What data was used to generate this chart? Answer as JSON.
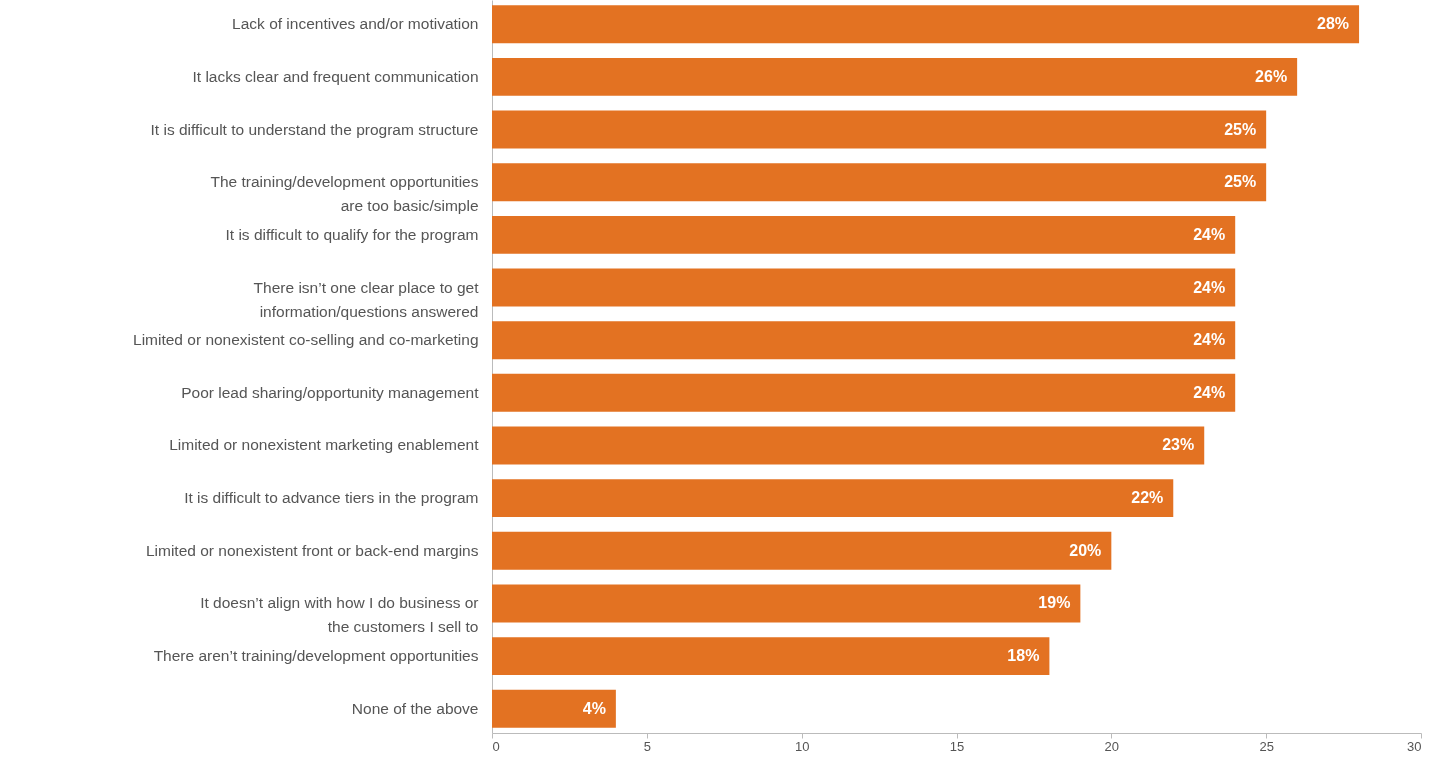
{
  "chart_data": {
    "type": "bar",
    "orientation": "horizontal",
    "color": "#e37222",
    "categories": [
      "Lack of incentives and/or motivation",
      "It lacks clear and frequent communication",
      "It is difficult to understand the program structure",
      "The training/development opportunities\nare too basic/simple",
      "It is difficult to qualify for the program",
      "There isn’t one clear place to get\ninformation/questions answered",
      "Limited or nonexistent co-selling and co-marketing",
      "Poor lead sharing/opportunity management",
      "Limited or nonexistent marketing enablement",
      "It is difficult to advance tiers in the program",
      "Limited or nonexistent front or back-end margins",
      "It doesn’t align with how I do business or\nthe customers I sell to",
      "There aren’t training/development opportunities",
      "None of the above"
    ],
    "values": [
      28,
      26,
      25,
      25,
      24,
      24,
      24,
      24,
      23,
      22,
      20,
      19,
      18,
      4
    ],
    "value_labels": [
      "28%",
      "26%",
      "25%",
      "25%",
      "24%",
      "24%",
      "24%",
      "24%",
      "23%",
      "22%",
      "20%",
      "19%",
      "18%",
      "4%"
    ],
    "xlim": [
      0,
      30
    ],
    "xticks": [
      0,
      5,
      10,
      15,
      20,
      25,
      30
    ]
  }
}
